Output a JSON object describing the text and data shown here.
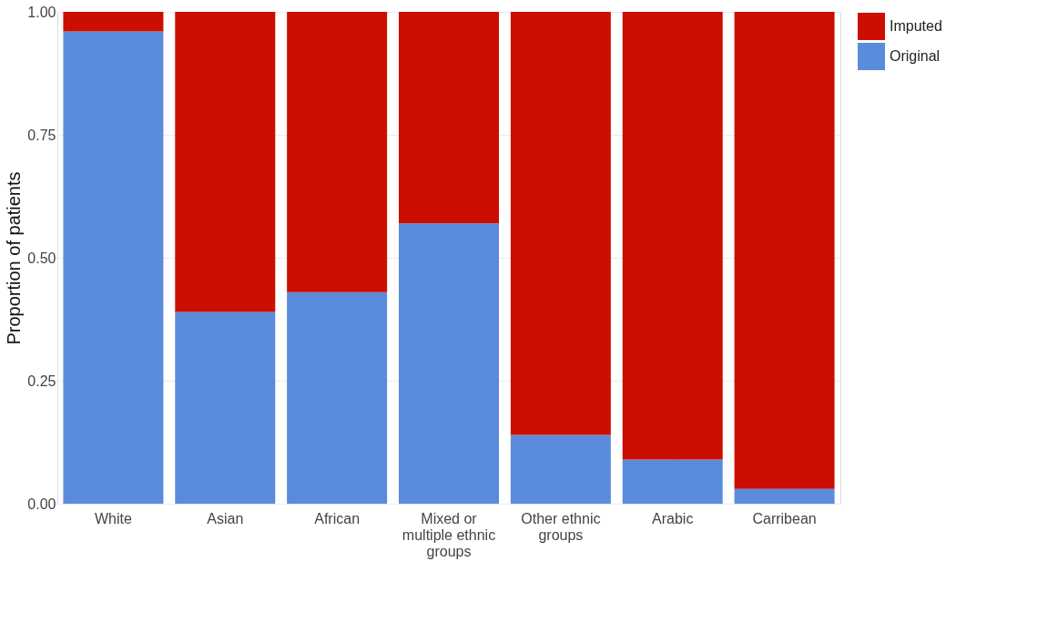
{
  "chart_data": {
    "type": "bar",
    "stacked": true,
    "ylabel": "Proportion of patients",
    "categories": [
      "White",
      "Asian",
      "African",
      "Mixed or multiple ethnic groups",
      "Other ethnic groups",
      "Arabic",
      "Carribean"
    ],
    "series": [
      {
        "name": "Original",
        "color": "#5b8bdb",
        "values": [
          0.96,
          0.39,
          0.43,
          0.57,
          0.14,
          0.09,
          0.03
        ]
      },
      {
        "name": "Imputed",
        "color": "#cc0e00",
        "values": [
          0.04,
          0.61,
          0.57,
          0.43,
          0.86,
          0.91,
          0.97
        ]
      }
    ],
    "ylim": [
      0,
      1
    ],
    "yticks": [
      {
        "value": 0,
        "label": "0.00"
      },
      {
        "value": 0.25,
        "label": "0.25"
      },
      {
        "value": 0.5,
        "label": "0.50"
      },
      {
        "value": 0.75,
        "label": "0.75"
      },
      {
        "value": 1,
        "label": "1.00"
      }
    ],
    "grid": true,
    "legend": "right"
  }
}
